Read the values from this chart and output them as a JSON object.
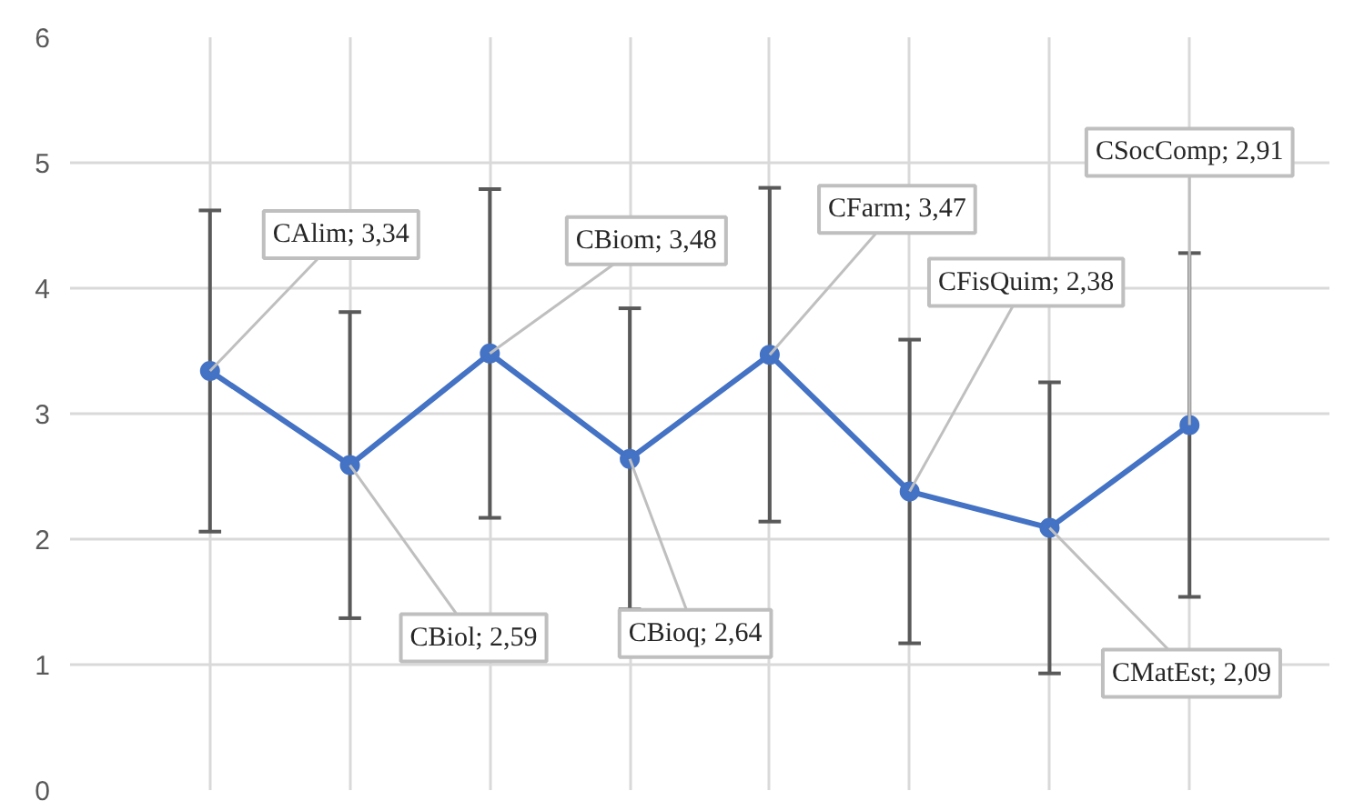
{
  "chart_data": {
    "type": "line",
    "categories": [
      null,
      null,
      null,
      null,
      null,
      null,
      null,
      null
    ],
    "series": [
      {
        "color": "#4472c4",
        "values": [
          3.34,
          2.59,
          3.48,
          2.64,
          3.47,
          2.38,
          2.09,
          2.91
        ],
        "errors": [
          1.28,
          1.22,
          1.31,
          1.2,
          1.33,
          1.21,
          1.16,
          1.37
        ],
        "value_labels": [
          "CAlim; 3,34",
          "CBiol; 2,59",
          "CBiom; 3,48",
          "CBioq; 2,64",
          "CFarm; 3,47",
          "CFisQuim; 2,38",
          "CMatEst; 2,09",
          "CSocComp; 2,91"
        ]
      }
    ],
    "ylim": [
      0,
      6
    ],
    "yticks": [
      0,
      1,
      2,
      3,
      4,
      5,
      6
    ],
    "grid": true,
    "marker": "circle",
    "line_style": "solid",
    "tick_labels": "y"
  }
}
